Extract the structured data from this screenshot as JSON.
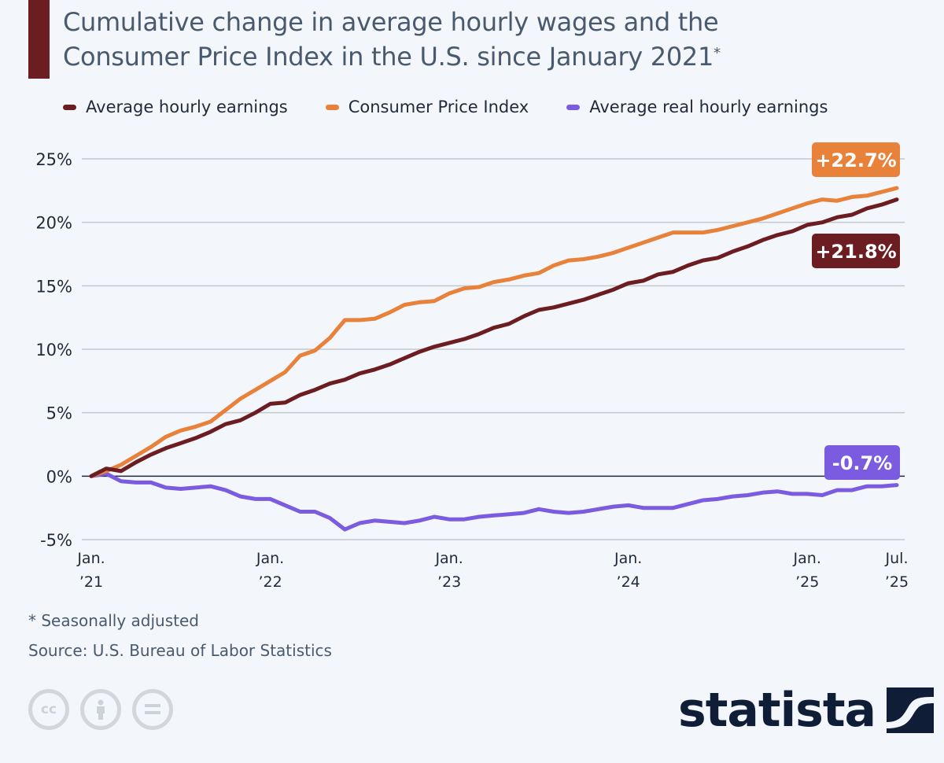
{
  "header": {
    "title_line1": "Cumulative change in average hourly wages and the",
    "title_line2": "Consumer Price Index in the U.S. since January 2021",
    "title_marker": "*",
    "accent_color": "#6c1d22"
  },
  "legend": [
    {
      "label": "Average hourly earnings",
      "color": "#6c1d22"
    },
    {
      "label": "Consumer Price Index",
      "color": "#e8813a"
    },
    {
      "label": "Average real hourly earnings",
      "color": "#7b5ce0"
    }
  ],
  "footer": {
    "note": "* Seasonally adjusted",
    "source": "Source: U.S. Bureau of Labor Statistics",
    "license_icons": [
      "cc-icon",
      "attribution-icon",
      "no-derivatives-icon"
    ],
    "license_cc_text": "cc",
    "logo_text": "statista"
  },
  "chart_data": {
    "type": "line",
    "title": "Cumulative change in average hourly wages and the Consumer Price Index in the U.S. since January 2021*",
    "xlabel": "",
    "ylabel": "",
    "ylim": [
      -5,
      25
    ],
    "yticks": [
      25,
      20,
      15,
      10,
      5,
      0,
      -5
    ],
    "ytick_labels": [
      "25%",
      "20%",
      "15%",
      "10%",
      "5%",
      "0%",
      "-5%"
    ],
    "grid": true,
    "legend_position": "top",
    "x_start": "Jan 2021",
    "x_end": "Jul 2025",
    "x_count_months": 55,
    "xticks": [
      {
        "month_index": 0,
        "line1": "Jan.",
        "line2": "’21"
      },
      {
        "month_index": 12,
        "line1": "Jan.",
        "line2": "’22"
      },
      {
        "month_index": 24,
        "line1": "Jan.",
        "line2": "’23"
      },
      {
        "month_index": 36,
        "line1": "Jan.",
        "line2": "’24"
      },
      {
        "month_index": 48,
        "line1": "Jan.",
        "line2": "’25"
      },
      {
        "month_index": 54,
        "line1": "Jul.",
        "line2": "’25"
      }
    ],
    "series": [
      {
        "name": "Consumer Price Index",
        "color": "#e8813a",
        "end_label": "+22.7%",
        "values": [
          0,
          0.4,
          0.9,
          1.6,
          2.3,
          3.1,
          3.6,
          3.9,
          4.3,
          5.2,
          6.1,
          6.8,
          7.5,
          8.2,
          9.5,
          9.9,
          10.9,
          12.3,
          12.3,
          12.4,
          12.9,
          13.5,
          13.7,
          13.8,
          14.4,
          14.8,
          14.9,
          15.3,
          15.5,
          15.8,
          16.0,
          16.6,
          17.0,
          17.1,
          17.3,
          17.6,
          18.0,
          18.4,
          18.8,
          19.2,
          19.2,
          19.2,
          19.4,
          19.7,
          20.0,
          20.3,
          20.7,
          21.1,
          21.5,
          21.8,
          21.7,
          22.0,
          22.1,
          22.4,
          22.7
        ]
      },
      {
        "name": "Average hourly earnings",
        "color": "#6c1d22",
        "end_label": "+21.8%",
        "values": [
          0,
          0.6,
          0.4,
          1.1,
          1.7,
          2.2,
          2.6,
          3.0,
          3.5,
          4.1,
          4.4,
          5.0,
          5.7,
          5.8,
          6.4,
          6.8,
          7.3,
          7.6,
          8.1,
          8.4,
          8.8,
          9.3,
          9.8,
          10.2,
          10.5,
          10.8,
          11.2,
          11.7,
          12.0,
          12.6,
          13.1,
          13.3,
          13.6,
          13.9,
          14.3,
          14.7,
          15.2,
          15.4,
          15.9,
          16.1,
          16.6,
          17.0,
          17.2,
          17.7,
          18.1,
          18.6,
          19.0,
          19.3,
          19.8,
          20.0,
          20.4,
          20.6,
          21.1,
          21.4,
          21.8
        ]
      },
      {
        "name": "Average real hourly earnings",
        "color": "#7b5ce0",
        "end_label": "-0.7%",
        "values": [
          0,
          0.2,
          -0.4,
          -0.5,
          -0.5,
          -0.9,
          -1.0,
          -0.9,
          -0.8,
          -1.1,
          -1.6,
          -1.8,
          -1.8,
          -2.3,
          -2.8,
          -2.8,
          -3.3,
          -4.2,
          -3.7,
          -3.5,
          -3.6,
          -3.7,
          -3.5,
          -3.2,
          -3.4,
          -3.4,
          -3.2,
          -3.1,
          -3.0,
          -2.9,
          -2.6,
          -2.8,
          -2.9,
          -2.8,
          -2.6,
          -2.4,
          -2.3,
          -2.5,
          -2.5,
          -2.5,
          -2.2,
          -1.9,
          -1.8,
          -1.6,
          -1.5,
          -1.3,
          -1.2,
          -1.4,
          -1.4,
          -1.5,
          -1.1,
          -1.1,
          -0.8,
          -0.8,
          -0.7
        ]
      }
    ]
  }
}
